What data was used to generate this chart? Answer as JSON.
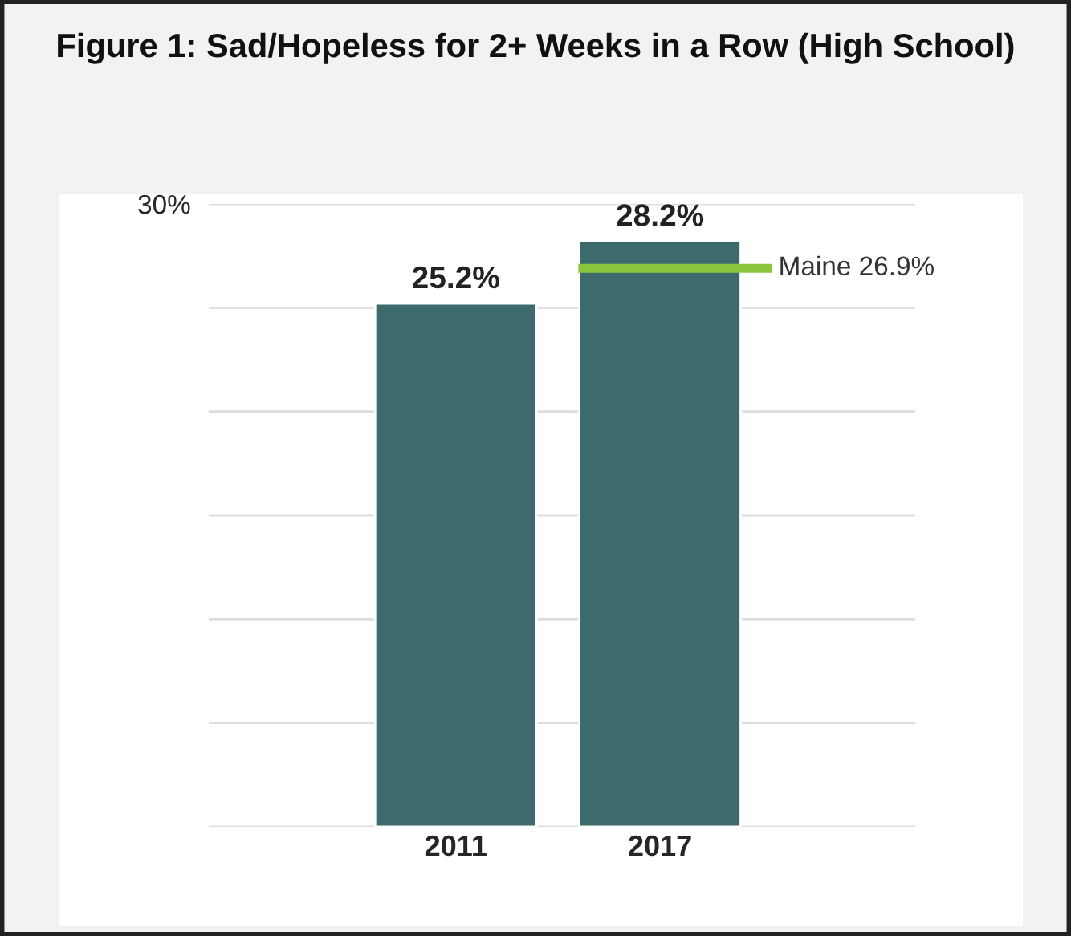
{
  "chart_data": {
    "type": "bar",
    "title": "Figure 1: Sad/Hopeless for 2+ Weeks in a Row (High School)",
    "categories": [
      "2011",
      "2017"
    ],
    "series": [
      {
        "color": "#3d6b6b",
        "values": [
          25.2,
          28.2
        ]
      }
    ],
    "value_labels": [
      "25.2%",
      "28.2%"
    ],
    "ylim": [
      0,
      30
    ],
    "yticks": [
      {
        "value": 0,
        "label": null
      },
      {
        "value": 5,
        "label": null
      },
      {
        "value": 10,
        "label": null
      },
      {
        "value": 15,
        "label": null
      },
      {
        "value": 20,
        "label": null
      },
      {
        "value": 25,
        "label": null
      },
      {
        "value": 30,
        "label": "30%"
      }
    ],
    "grid": "y",
    "ref_lines": [
      {
        "axis": "y",
        "value": 26.9,
        "label": "Maine 26.9%",
        "color": "#8cc63f"
      }
    ]
  }
}
